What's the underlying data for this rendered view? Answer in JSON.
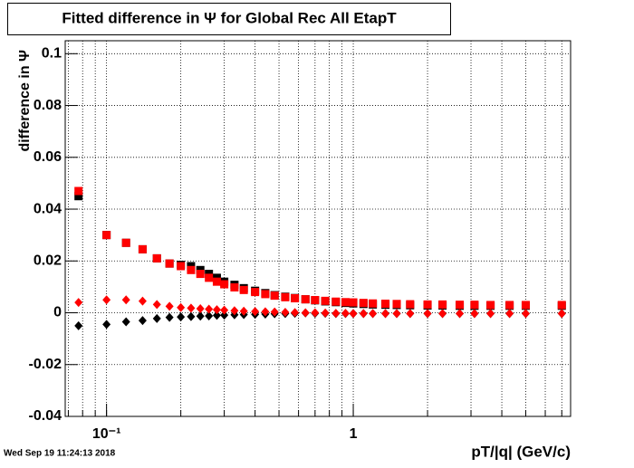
{
  "chart_data": {
    "type": "scatter",
    "title": "Fitted difference in  Ψ  for Global Rec All EtapT",
    "y_label": "difference in  Ψ",
    "x_label": "pT/|q| (GeV/c)",
    "timestamp": "Wed Sep 19 11:24:13 2018",
    "x_log": true,
    "grid": true,
    "xlim": [
      0.068,
      7.6
    ],
    "ylim": [
      -0.04,
      0.105
    ],
    "xticks": [
      {
        "value": 0.1,
        "label": "10⁻¹"
      },
      1
    ],
    "xgrid": [
      0.07,
      0.08,
      0.09,
      0.1,
      0.2,
      0.3,
      0.4,
      0.5,
      0.6,
      0.7,
      0.8,
      0.9,
      1,
      2,
      3,
      4,
      5,
      6,
      7
    ],
    "yticks": [
      -0.04,
      -0.02,
      0,
      0.02,
      0.04,
      0.06,
      0.08,
      0.1
    ],
    "x": [
      0.077,
      0.1,
      0.12,
      0.14,
      0.16,
      0.18,
      0.2,
      0.22,
      0.24,
      0.26,
      0.28,
      0.3,
      0.33,
      0.36,
      0.4,
      0.44,
      0.48,
      0.53,
      0.58,
      0.64,
      0.7,
      0.77,
      0.85,
      0.93,
      1.0,
      1.1,
      1.2,
      1.35,
      1.5,
      1.7,
      2.0,
      2.3,
      2.7,
      3.1,
      3.6,
      4.3,
      5.0,
      7.0
    ],
    "series": [
      {
        "marker": "square",
        "color": "#000000",
        "values": [
          0.045,
          0.03,
          0.027,
          0.0245,
          0.021,
          0.019,
          0.0185,
          0.018,
          0.0165,
          0.015,
          0.0135,
          0.012,
          0.0108,
          0.0095,
          0.0085,
          0.0076,
          0.0068,
          0.0062,
          0.0057,
          0.0052,
          0.0048,
          0.0044,
          0.0041,
          0.0038,
          0.0036,
          0.0034,
          0.0032,
          0.0031,
          0.003,
          0.0029,
          0.0028,
          0.0028,
          0.0027,
          0.0027,
          0.0027,
          0.0027,
          0.0027,
          0.0027
        ]
      },
      {
        "marker": "square",
        "color": "#ff0000",
        "values": [
          0.047,
          0.03,
          0.027,
          0.0245,
          0.021,
          0.019,
          0.018,
          0.0165,
          0.015,
          0.0135,
          0.012,
          0.011,
          0.0098,
          0.0088,
          0.008,
          0.0072,
          0.0066,
          0.006,
          0.0056,
          0.0052,
          0.0049,
          0.0046,
          0.0043,
          0.0041,
          0.004,
          0.0038,
          0.0036,
          0.0035,
          0.0034,
          0.0033,
          0.0032,
          0.0032,
          0.0031,
          0.0031,
          0.003,
          0.003,
          0.003,
          0.003
        ]
      },
      {
        "marker": "diamond",
        "color": "#000000",
        "values": [
          -0.005,
          -0.0045,
          -0.0035,
          -0.003,
          -0.0022,
          -0.0018,
          -0.0016,
          -0.0015,
          -0.0013,
          -0.0012,
          -0.001,
          -0.0009,
          -0.0008,
          -0.0007,
          -0.0006,
          -0.0005,
          -0.0004,
          -0.0003,
          -0.0002,
          -0.0001,
          -0.0002,
          -0.0002,
          -0.0003,
          -0.0003,
          -0.0003,
          -0.0003,
          -0.0003,
          -0.0003,
          -0.0003,
          -0.0003,
          -0.0003,
          -0.0003,
          -0.0003,
          -0.0003,
          -0.0003,
          -0.0003,
          -0.0003,
          -0.0003
        ]
      },
      {
        "marker": "diamond",
        "color": "#ff0000",
        "values": [
          0.004,
          0.005,
          0.005,
          0.0045,
          0.0032,
          0.0025,
          0.002,
          0.0018,
          0.0016,
          0.0014,
          0.0012,
          0.001,
          0.0008,
          0.0006,
          0.0005,
          0.0004,
          0.0003,
          0.0002,
          0.0001,
          0,
          0,
          -0.0001,
          -0.0002,
          -0.0002,
          -0.0003,
          -0.0003,
          -0.0003,
          -0.0003,
          -0.0003,
          -0.0003,
          -0.0003,
          -0.0003,
          -0.0003,
          -0.0003,
          -0.0003,
          -0.0003,
          -0.0003,
          -0.0003
        ]
      }
    ]
  }
}
